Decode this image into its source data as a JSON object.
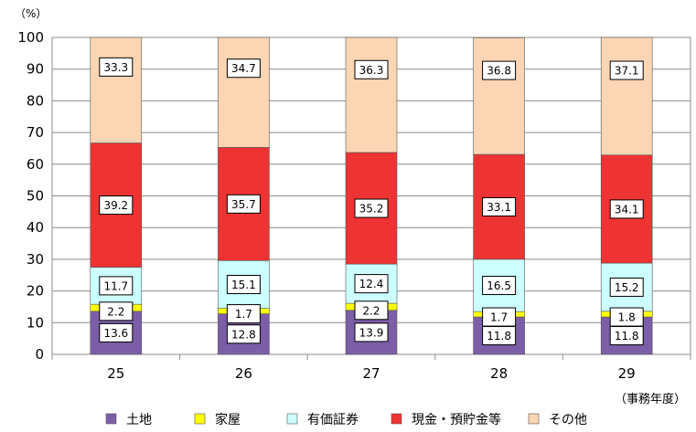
{
  "chart_data": {
    "type": "bar",
    "stacked": true,
    "y_unit_label": "（%）",
    "x_unit_label": "（事務年度）",
    "ylim": [
      0,
      100
    ],
    "yticks": [
      "0",
      "10",
      "20",
      "30",
      "40",
      "50",
      "60",
      "70",
      "80",
      "90",
      "100"
    ],
    "categories": [
      "25",
      "26",
      "27",
      "28",
      "29"
    ],
    "grid": "horizontal",
    "legend_position": "bottom",
    "series": [
      {
        "name": "土地",
        "color": "#7b5ea7",
        "values": [
          13.6,
          12.8,
          13.9,
          11.8,
          11.8
        ]
      },
      {
        "name": "家屋",
        "color": "#ffff00",
        "values": [
          2.2,
          1.7,
          2.2,
          1.7,
          1.8
        ]
      },
      {
        "name": "有価証券",
        "color": "#ccffff",
        "values": [
          11.7,
          15.1,
          12.4,
          16.5,
          15.2
        ]
      },
      {
        "name": "現金・預貯金等",
        "color": "#ee3333",
        "values": [
          39.2,
          35.7,
          35.2,
          33.1,
          34.1
        ]
      },
      {
        "name": "その他",
        "color": "#fcd5b4",
        "values": [
          33.3,
          34.7,
          36.3,
          36.8,
          37.1
        ]
      }
    ]
  }
}
